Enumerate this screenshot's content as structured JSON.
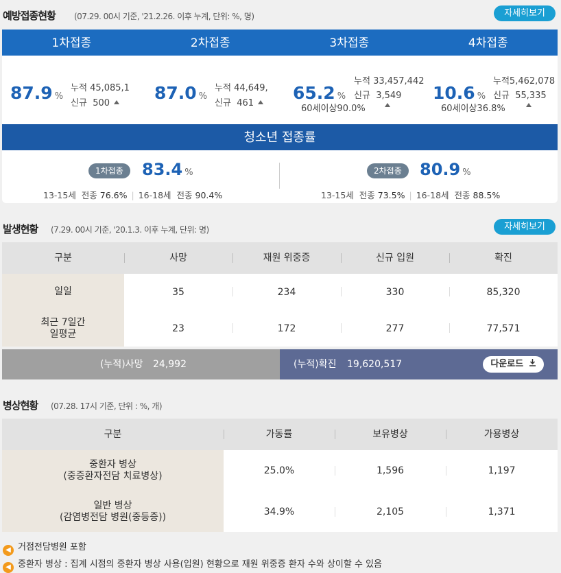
{
  "vaccine": {
    "title": "예방접종현황",
    "subtitle": "(07.29. 00시 기준, '21.2.26. 이후 누계, 단위: %, 명)",
    "more_label": "자세히보기",
    "doses": [
      {
        "tab": "1차접종",
        "pct": "87.9",
        "unit": "%",
        "cum_label": "누적",
        "cum": "45,085,1",
        "new_label": "신규",
        "new": "500",
        "age": ""
      },
      {
        "tab": "2차접종",
        "pct": "87.0",
        "unit": "%",
        "cum_label": "누적",
        "cum": "44,649,",
        "new_label": "신규",
        "new": "461",
        "age": ""
      },
      {
        "tab": "3차접종",
        "pct": "65.2",
        "unit": "%",
        "cum_label": "누적",
        "cum": "33,457,442",
        "new_label": "신규",
        "new": "3,549",
        "age": "60세이상90.0%"
      },
      {
        "tab": "4차접종",
        "pct": "10.6",
        "unit": "%",
        "cum_label": "누적",
        "cum": "5,462,078",
        "new_label": "신규",
        "new": "55,335",
        "age": "60세이상36.8%"
      }
    ],
    "youth": {
      "title": "청소년 접종률",
      "items": [
        {
          "badge": "1차접종",
          "pct": "83.4",
          "unit": "%",
          "a_label": "13-15세",
          "a_total": "전종",
          "a_val": "76.6%",
          "b_label": "16-18세",
          "b_total": "전종",
          "b_val": "90.4%"
        },
        {
          "badge": "2차접종",
          "pct": "80.9",
          "unit": "%",
          "a_label": "13-15세",
          "a_total": "전종",
          "a_val": "73.5%",
          "b_label": "16-18세",
          "b_total": "전종",
          "b_val": "88.5%"
        }
      ]
    }
  },
  "occurrence": {
    "title": "발생현황",
    "subtitle": "(7.29. 00시 기준, '20.1.3. 이후 누계, 단위: 명)",
    "more_label": "자세히보기",
    "headers": [
      "구분",
      "사망",
      "재원 위중증",
      "신규 입원",
      "확진"
    ],
    "rows": [
      {
        "label1": "일일",
        "label2": "",
        "values": [
          "35",
          "234",
          "330",
          "85,320"
        ]
      },
      {
        "label1": "최근 7일간",
        "label2": "일평균",
        "values": [
          "23",
          "172",
          "277",
          "77,571"
        ]
      }
    ],
    "cum_death_label": "(누적)사망",
    "cum_death": "24,992",
    "cum_conf_label": "(누적)확진",
    "cum_conf": "19,620,517",
    "download_label": "다운로드"
  },
  "beds": {
    "title": "병상현황",
    "subtitle": "(07.28. 17시 기준, 단위 : %, 개)",
    "headers": [
      "구분",
      "가동률",
      "보유병상",
      "가용병상"
    ],
    "rows": [
      {
        "label1": "중환자 병상",
        "label2": "(중증환자전담 치료병상)",
        "values": [
          "25.0%",
          "1,596",
          "1,197"
        ]
      },
      {
        "label1": "일반 병상",
        "label2": "(감염병전담 병원(중등증))",
        "values": [
          "34.9%",
          "2,105",
          "1,371"
        ]
      }
    ]
  },
  "notes": [
    "거점전담병원 포함",
    "중환자 병상 : 집계 시점의 중환자 병상 사용(입원) 현황으로 재원 위중증 환자 수와 상이할 수 있음"
  ]
}
